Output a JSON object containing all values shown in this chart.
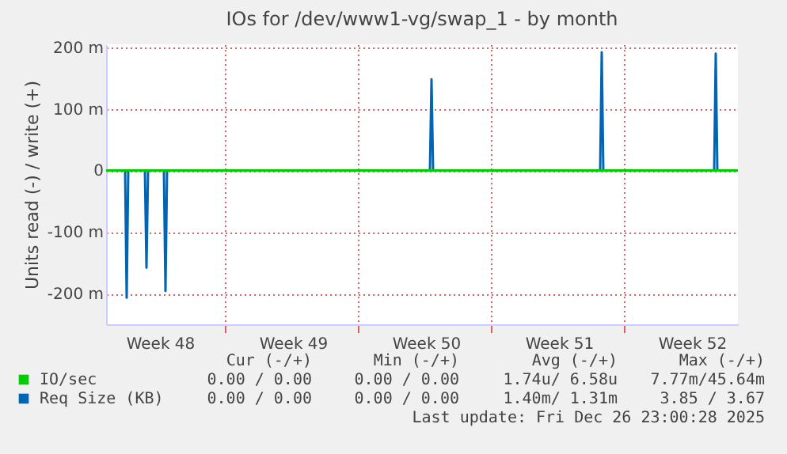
{
  "chart_data": {
    "type": "line",
    "title": "IOs for /dev/www1-vg/swap_1 - by month",
    "ylabel": "Units read (-) / write (+)",
    "series": [
      {
        "name": "IO/sec",
        "color": "#00cc00",
        "x": [
          "2025-11-24T18:00",
          "2025-12-28T00:00"
        ],
        "values": [
          0,
          0
        ]
      },
      {
        "name": "Req Size (KB)",
        "color": "#0066b3",
        "x": [
          "2025-11-24T18:00",
          "2025-11-25T18:00",
          "2025-11-25T20:00",
          "2025-11-25T22:00",
          "2025-11-26T19:00",
          "2025-11-26T21:00",
          "2025-11-26T23:00",
          "2025-11-27T19:00",
          "2025-11-27T21:00",
          "2025-11-27T23:00",
          "2025-12-11T19:00",
          "2025-12-11T21:00",
          "2025-12-11T23:00",
          "2025-12-20T18:00",
          "2025-12-20T20:00",
          "2025-12-20T22:00",
          "2025-12-26T18:00",
          "2025-12-26T20:00",
          "2025-12-26T22:00",
          "2025-12-28T00:00"
        ],
        "values": [
          0,
          0,
          -207,
          0,
          0,
          -158,
          0,
          0,
          -196,
          0,
          0,
          148,
          0,
          0,
          192,
          0,
          0,
          190,
          0,
          0
        ]
      }
    ],
    "xlim": [
      "2025-11-24T18:00",
      "2025-12-28T00:00"
    ],
    "xticks": [
      {
        "value": "2025-11-27T14:00",
        "label": "Week 48"
      },
      {
        "value": "2025-12-01T00:00",
        "label": null
      },
      {
        "value": "2025-12-04T14:00",
        "label": "Week 49"
      },
      {
        "value": "2025-12-08T00:00",
        "label": null
      },
      {
        "value": "2025-12-11T14:00",
        "label": "Week 50"
      },
      {
        "value": "2025-12-15T00:00",
        "label": null
      },
      {
        "value": "2025-12-18T14:00",
        "label": "Week 51"
      },
      {
        "value": "2025-12-22T00:00",
        "label": null
      },
      {
        "value": "2025-12-25T14:00",
        "label": "Week 52"
      }
    ],
    "ylim": [
      -250,
      205
    ],
    "yticks": [
      {
        "value": -200,
        "label": "-200 m"
      },
      {
        "value": -100,
        "label": "-100 m"
      },
      0,
      {
        "value": 100,
        "label": "100 m"
      },
      {
        "value": 200,
        "label": "200 m"
      }
    ],
    "grid": true,
    "legend": "bottom left",
    "annotations": [
      "Cur (-/+)",
      "Min (-/+)",
      "Avg (-/+)",
      "Max (-/+)",
      "0.00 / 0.00",
      "0.00 / 0.00",
      "1.74u/ 6.58u",
      "7.77m/45.64m",
      "0.00 / 0.00",
      "0.00 / 0.00",
      "1.40m/ 1.31m",
      "3.85 / 3.67",
      "Last update: Fri Dec 26 23:00:28 2025"
    ]
  }
}
